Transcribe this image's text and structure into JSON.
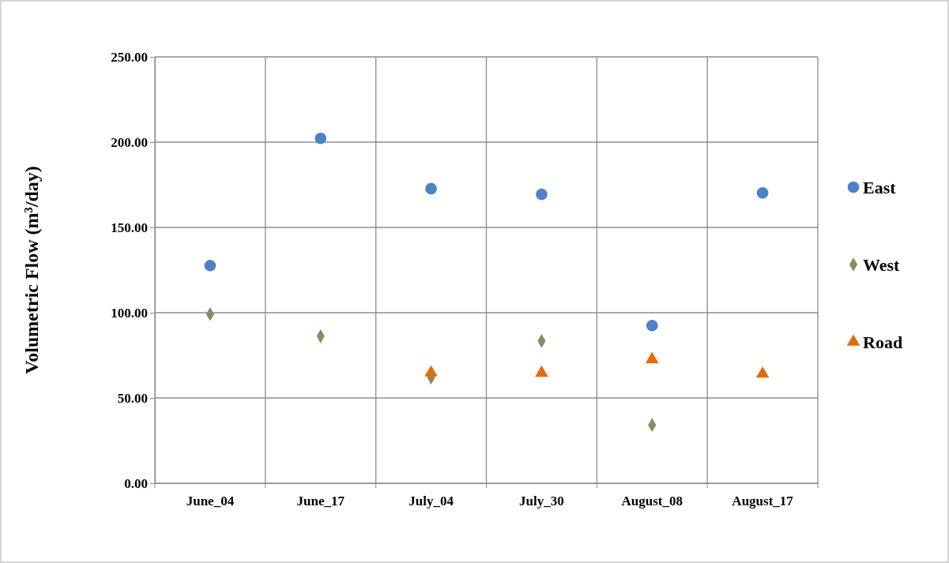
{
  "chart_data": {
    "type": "scatter",
    "ylabel": "Volumetric Flow (m³/day)",
    "categories": [
      "June_04",
      "June_17",
      "July_04",
      "July_30",
      "August_08",
      "August_17"
    ],
    "series": [
      {
        "name": "East",
        "color": "#4f81c7",
        "marker": "circle",
        "values": [
          127.6,
          202.2,
          172.7,
          169.4,
          92.4,
          170.2
        ]
      },
      {
        "name": "West",
        "color": "#8c8a62",
        "marker": "diamond",
        "values": [
          99.2,
          86.2,
          62,
          83.4,
          34.2,
          null
        ]
      },
      {
        "name": "Road",
        "color": "#e36c0a",
        "marker": "triangle",
        "values": [
          null,
          null,
          64.8,
          64.6,
          72.6,
          64.1
        ]
      }
    ],
    "ylim": [
      0,
      250
    ],
    "yticks": [
      {
        "value": 0,
        "label": "0.00"
      },
      {
        "value": 50,
        "label": "50.00"
      },
      {
        "value": 100,
        "label": "100.00"
      },
      {
        "value": 150,
        "label": "150.00"
      },
      {
        "value": 200,
        "label": "200.00"
      },
      {
        "value": 250,
        "label": "250.00"
      }
    ],
    "grid": true,
    "legend": "right"
  }
}
